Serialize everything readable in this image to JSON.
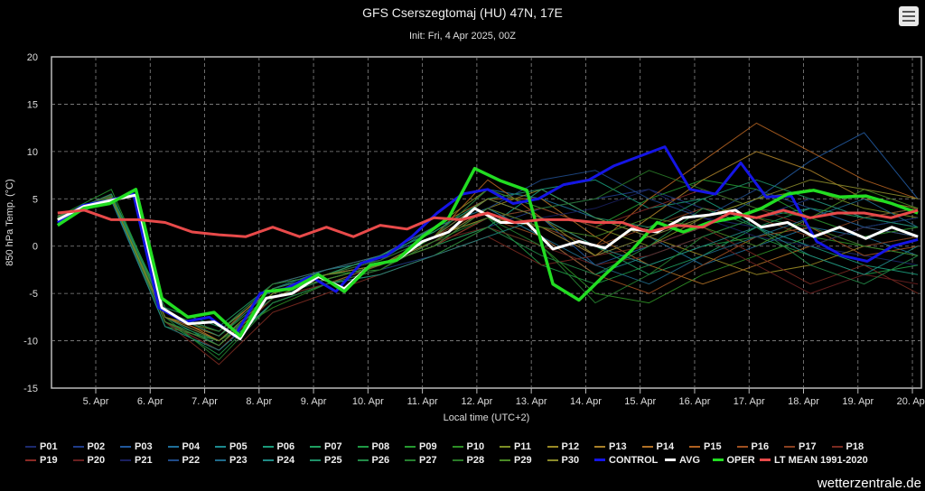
{
  "header": {
    "title": "GFS Cserszegtomaj (HU) 47N, 17E",
    "subtitle": "Init: Fri, 4 Apr 2025, 00Z",
    "menu_icon": "hamburger-menu-icon"
  },
  "watermark": "wetterzentrale.de",
  "chart_data": {
    "type": "line",
    "title": "GFS Cserszegtomaj (HU) 47N, 17E",
    "subtitle": "Init: Fri, 4 Apr 2025, 00Z",
    "xlabel": "Local time (UTC+2)",
    "ylabel": "850 hPa Temp. (°C)",
    "ylim": [
      -15,
      20
    ],
    "yticks": [
      "20",
      "15",
      "10",
      "5",
      "0",
      "-5",
      "-10",
      "-15"
    ],
    "yticks_values": [
      20,
      15,
      10,
      5,
      0,
      -5,
      -10,
      -15
    ],
    "xticks": [
      "5. Apr",
      "6. Apr",
      "7. Apr",
      "8. Apr",
      "9. Apr",
      "10. Apr",
      "11. Apr",
      "12. Apr",
      "13. Apr",
      "14. Apr",
      "15. Apr",
      "16. Apr",
      "17. Apr",
      "18. Apr",
      "19. Apr",
      "20. Apr"
    ],
    "x_unit": "days since 4 Apr 2025 00:00 local",
    "x_range_days": [
      0.3,
      16.1
    ],
    "grid": true,
    "legend_position": "bottom",
    "series": [
      {
        "name": "P01",
        "color": "#1c2a6e",
        "values": [
          3,
          5,
          -7.5,
          -10,
          -5,
          -3,
          -2,
          0.5,
          4,
          2,
          -1,
          1,
          3,
          2,
          0,
          -1,
          -2
        ]
      },
      {
        "name": "P02",
        "color": "#1f3c8a",
        "values": [
          2.5,
          5.5,
          -8,
          -11,
          -6,
          -4,
          -2.5,
          -1,
          2,
          4,
          5,
          6,
          4,
          3,
          5,
          3,
          2
        ]
      },
      {
        "name": "P03",
        "color": "#21589c",
        "values": [
          3,
          5,
          -7,
          -9,
          -4,
          -3,
          -1,
          1,
          5,
          3,
          -2,
          0,
          2,
          5,
          9,
          12,
          5
        ]
      },
      {
        "name": "P04",
        "color": "#1f6f9a",
        "values": [
          2.8,
          4.8,
          -8.5,
          -10,
          -5.5,
          -3,
          -2,
          1,
          6,
          5,
          3,
          1,
          -2,
          0,
          2,
          1,
          -1
        ]
      },
      {
        "name": "P05",
        "color": "#1c8a8f",
        "values": [
          3.2,
          5.2,
          -7,
          -9,
          -4.5,
          -2.5,
          -1.5,
          2,
          4,
          1,
          -3,
          -1,
          1,
          3,
          4,
          2,
          3
        ]
      },
      {
        "name": "P06",
        "color": "#1a9a7a",
        "values": [
          2.6,
          5,
          -7.5,
          -10.5,
          -5,
          -3.5,
          -2,
          0,
          2,
          6,
          7,
          4,
          5,
          2,
          0,
          -2,
          -3
        ]
      },
      {
        "name": "P07",
        "color": "#1fa060",
        "values": [
          3,
          5.5,
          -6.5,
          -8.5,
          -4,
          -3,
          -1,
          1.5,
          5,
          3,
          0,
          -3,
          -1,
          2,
          4,
          3,
          4
        ]
      },
      {
        "name": "P08",
        "color": "#1f9a45",
        "values": [
          2.9,
          5,
          -8,
          -11.5,
          -6,
          -4,
          -2,
          0,
          3,
          -2,
          -4,
          -2,
          0,
          1,
          -1,
          -3,
          -2
        ]
      },
      {
        "name": "P09",
        "color": "#259a30",
        "values": [
          3.1,
          6,
          -7,
          -9.5,
          -5,
          -3,
          -2.5,
          1,
          3,
          4,
          2,
          5,
          7,
          6,
          3,
          1,
          2
        ]
      },
      {
        "name": "P10",
        "color": "#2d8f25",
        "values": [
          2.7,
          5.2,
          -8.5,
          -10,
          -6.5,
          -4,
          -3,
          -1,
          2,
          0,
          -5,
          -6,
          -3,
          -1,
          1,
          0,
          1
        ]
      },
      {
        "name": "P11",
        "color": "#7d8f25",
        "values": [
          3,
          5,
          -7.5,
          -9,
          -4.5,
          -3,
          -1,
          2,
          6,
          4,
          2,
          0,
          3,
          5,
          6,
          4,
          3
        ]
      },
      {
        "name": "P12",
        "color": "#9a8a25",
        "values": [
          2.8,
          5.4,
          -7,
          -10,
          -5,
          -3.5,
          -2,
          0.5,
          4,
          6,
          3,
          1,
          -1,
          -3,
          -2,
          0,
          -1
        ]
      },
      {
        "name": "P13",
        "color": "#a88028",
        "values": [
          3.2,
          5.1,
          -8,
          -10.5,
          -5.5,
          -3,
          -2,
          1,
          3,
          2,
          -1,
          3,
          7,
          10,
          8,
          5,
          4
        ]
      },
      {
        "name": "P14",
        "color": "#b07025",
        "values": [
          2.9,
          4.9,
          -7.5,
          -9.5,
          -4,
          -2.5,
          -1,
          2,
          5,
          5,
          1,
          -2,
          -4,
          -2,
          0,
          2,
          1
        ]
      },
      {
        "name": "P15",
        "color": "#b06020",
        "values": [
          3,
          5.3,
          -7,
          -10,
          -5,
          -3,
          -1.5,
          1,
          7,
          3,
          0,
          5,
          9,
          13,
          10,
          7,
          5
        ]
      },
      {
        "name": "P16",
        "color": "#a05020",
        "values": [
          2.7,
          5,
          -8,
          -11,
          -5.5,
          -4,
          -2,
          0,
          3,
          1,
          -3,
          -5,
          -2,
          1,
          2,
          -1,
          0
        ]
      },
      {
        "name": "P17",
        "color": "#8a4020",
        "values": [
          3,
          5.2,
          -7.5,
          -10,
          -5,
          -3.5,
          -2,
          1,
          4,
          2,
          0,
          2,
          4,
          3,
          1,
          3,
          4
        ]
      },
      {
        "name": "P18",
        "color": "#7a2a20",
        "values": [
          2.8,
          5,
          -8,
          -12.5,
          -7,
          -5,
          -3,
          -1,
          1,
          -2,
          -1,
          0,
          2,
          -1,
          -4,
          -2,
          -5
        ]
      },
      {
        "name": "P19",
        "color": "#8a2a25",
        "values": [
          3.1,
          5.4,
          -7,
          -9.5,
          -4.5,
          -3,
          -2,
          0,
          3,
          4,
          2,
          4,
          6,
          4,
          2,
          0,
          1
        ]
      },
      {
        "name": "P20",
        "color": "#6a2020",
        "values": [
          2.9,
          5,
          -8,
          -11,
          -5.5,
          -4,
          -2.5,
          0.5,
          2,
          0,
          -2,
          -1,
          1,
          -2,
          -5,
          -3,
          -4
        ]
      },
      {
        "name": "P21",
        "color": "#1a2060",
        "values": [
          3,
          5.2,
          -7.5,
          -10,
          -5,
          -3,
          -1.5,
          1,
          5,
          3,
          4,
          6,
          3,
          1,
          0,
          2,
          3
        ]
      },
      {
        "name": "P22",
        "color": "#1f4a88",
        "values": [
          2.7,
          5,
          -8,
          -10.5,
          -5,
          -3.5,
          -2,
          0,
          4,
          7,
          8,
          5,
          3,
          6,
          4,
          2,
          1
        ]
      },
      {
        "name": "P23",
        "color": "#1f6a8a",
        "values": [
          3,
          5.3,
          -7,
          -9,
          -4,
          -2.5,
          -1,
          2,
          4,
          1,
          -2,
          -4,
          -1,
          1,
          3,
          5,
          2
        ]
      },
      {
        "name": "P24",
        "color": "#208a85",
        "values": [
          2.8,
          4.9,
          -8.5,
          -11,
          -6,
          -4,
          -3,
          -1,
          1,
          3,
          0,
          -2,
          0,
          2,
          -1,
          -3,
          0
        ]
      },
      {
        "name": "P25",
        "color": "#1f9068",
        "values": [
          3.1,
          5.5,
          -7,
          -9.5,
          -4.5,
          -3,
          -1,
          1.5,
          5,
          6,
          3,
          2,
          5,
          7,
          5,
          3,
          2
        ]
      },
      {
        "name": "P26",
        "color": "#228a48",
        "values": [
          2.9,
          5.1,
          -8,
          -10,
          -5.5,
          -3.5,
          -2,
          0,
          2,
          -1,
          -3,
          0,
          4,
          2,
          -2,
          -4,
          -1
        ]
      },
      {
        "name": "P27",
        "color": "#267f30",
        "values": [
          3,
          5.3,
          -7.5,
          -12,
          -6,
          -4,
          -2.5,
          0.5,
          3,
          0,
          -6,
          -3,
          1,
          3,
          2,
          0,
          -1
        ]
      },
      {
        "name": "P28",
        "color": "#2a7a28",
        "values": [
          2.8,
          5,
          -7,
          -9,
          -4,
          -3,
          -1.5,
          1,
          6,
          4,
          5,
          8,
          6,
          4,
          3,
          1,
          2
        ]
      },
      {
        "name": "P29",
        "color": "#4a8a25",
        "values": [
          3,
          5.2,
          -8,
          -10.5,
          -5,
          -3.5,
          -2,
          0,
          4,
          2,
          1,
          3,
          2,
          0,
          3,
          6,
          4
        ]
      },
      {
        "name": "P30",
        "color": "#8a8a2a",
        "values": [
          2.9,
          5.1,
          -7.5,
          -10,
          -5,
          -3,
          -2,
          1,
          5,
          3,
          -1,
          1,
          3,
          5,
          7,
          6,
          5
        ]
      },
      {
        "name": "CONTROL",
        "color": "#1515e6",
        "width": 3,
        "values": [
          2.5,
          4.3,
          4.8,
          5.5,
          -6.5,
          -8.0,
          -7.5,
          -9.5,
          -5.0,
          -4.5,
          -3.2,
          -4.8,
          -1.8,
          -1.0,
          1.0,
          3.5,
          5.5,
          6.0,
          4.5,
          5.0,
          6.5,
          7.0,
          8.5,
          9.5,
          10.5,
          6.0,
          5.5,
          8.8,
          5.2,
          5.3,
          0.5,
          -1.0,
          -1.6,
          0.0,
          0.7
        ]
      },
      {
        "name": "AVG",
        "color": "#ffffff",
        "width": 3,
        "values": [
          2.8,
          4.2,
          4.8,
          5.4,
          -6.5,
          -8.2,
          -8.0,
          -9.8,
          -5.5,
          -5.0,
          -3.2,
          -4.5,
          -2.0,
          -1.5,
          0.5,
          1.5,
          4.0,
          2.5,
          2.5,
          -0.3,
          0.5,
          -0.2,
          1.8,
          1.5,
          3.0,
          3.3,
          3.8,
          2.0,
          2.5,
          1.0,
          2.0,
          0.8,
          2.0,
          1.0
        ]
      },
      {
        "name": "OPER",
        "color": "#22dd22",
        "width": 3.5,
        "values": [
          2.2,
          4.0,
          4.5,
          6.0,
          -5.5,
          -7.5,
          -7.0,
          -9.5,
          -4.8,
          -4.5,
          -3.0,
          -4.8,
          -2.0,
          -1.5,
          1.0,
          3.0,
          8.2,
          6.9,
          5.9,
          -4.0,
          -5.7,
          -3.0,
          -0.5,
          2.5,
          1.5,
          2.5,
          3.0,
          4.0,
          5.5,
          5.9,
          5.2,
          5.3,
          4.5,
          3.5
        ]
      },
      {
        "name": "LT MEAN 1991-2020",
        "color": "#e84a4a",
        "width": 3,
        "values": [
          3.5,
          3.8,
          2.8,
          2.8,
          2.5,
          1.5,
          1.2,
          1.0,
          2.0,
          1.0,
          2.0,
          1.0,
          2.2,
          1.8,
          3.0,
          2.8,
          3.5,
          2.5,
          2.8,
          2.8,
          2.5,
          2.5,
          1.5,
          2.2,
          2.0,
          3.5,
          3.0,
          3.8,
          3.0,
          3.5,
          3.5,
          3.0,
          3.8
        ]
      }
    ]
  }
}
